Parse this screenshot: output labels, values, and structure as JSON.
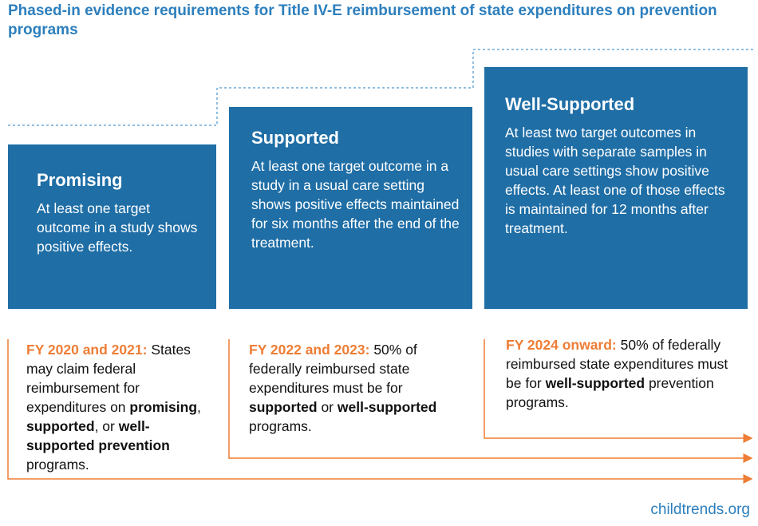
{
  "title": "Phased-in evidence requirements for Title IV-E reimbursement of state expenditures on prevention programs",
  "tiers": [
    {
      "name": "Promising",
      "description": "At least one target outcome in a study shows positive effects.",
      "timeline": {
        "label": "FY 2020 and 2021:",
        "runs": [
          "States may claim federal reimbursement for expenditures on",
          "promising",
          ",",
          "supported",
          ", or",
          "well-supported prevention",
          "programs."
        ]
      }
    },
    {
      "name": "Supported",
      "description": "At least one target outcome in a study in a usual care setting shows positive effects maintained for six months after the end of the treatment.",
      "timeline": {
        "label": "FY 2022 and 2023:",
        "runs": [
          "50% of federally reimbursed state expenditures must be for",
          "supported",
          "or",
          "well-supported",
          "programs."
        ]
      }
    },
    {
      "name": "Well-Supported",
      "description": "At least two target outcomes in studies with separate samples in usual care settings show positive effects. At least one of those effects is maintained for 12 months after treatment.",
      "timeline": {
        "label": "FY 2024 onward:",
        "runs": [
          "50% of federally reimbursed state expenditures must be for",
          "well-supported",
          "prevention programs."
        ]
      }
    }
  ],
  "source": "childtrends.org"
}
